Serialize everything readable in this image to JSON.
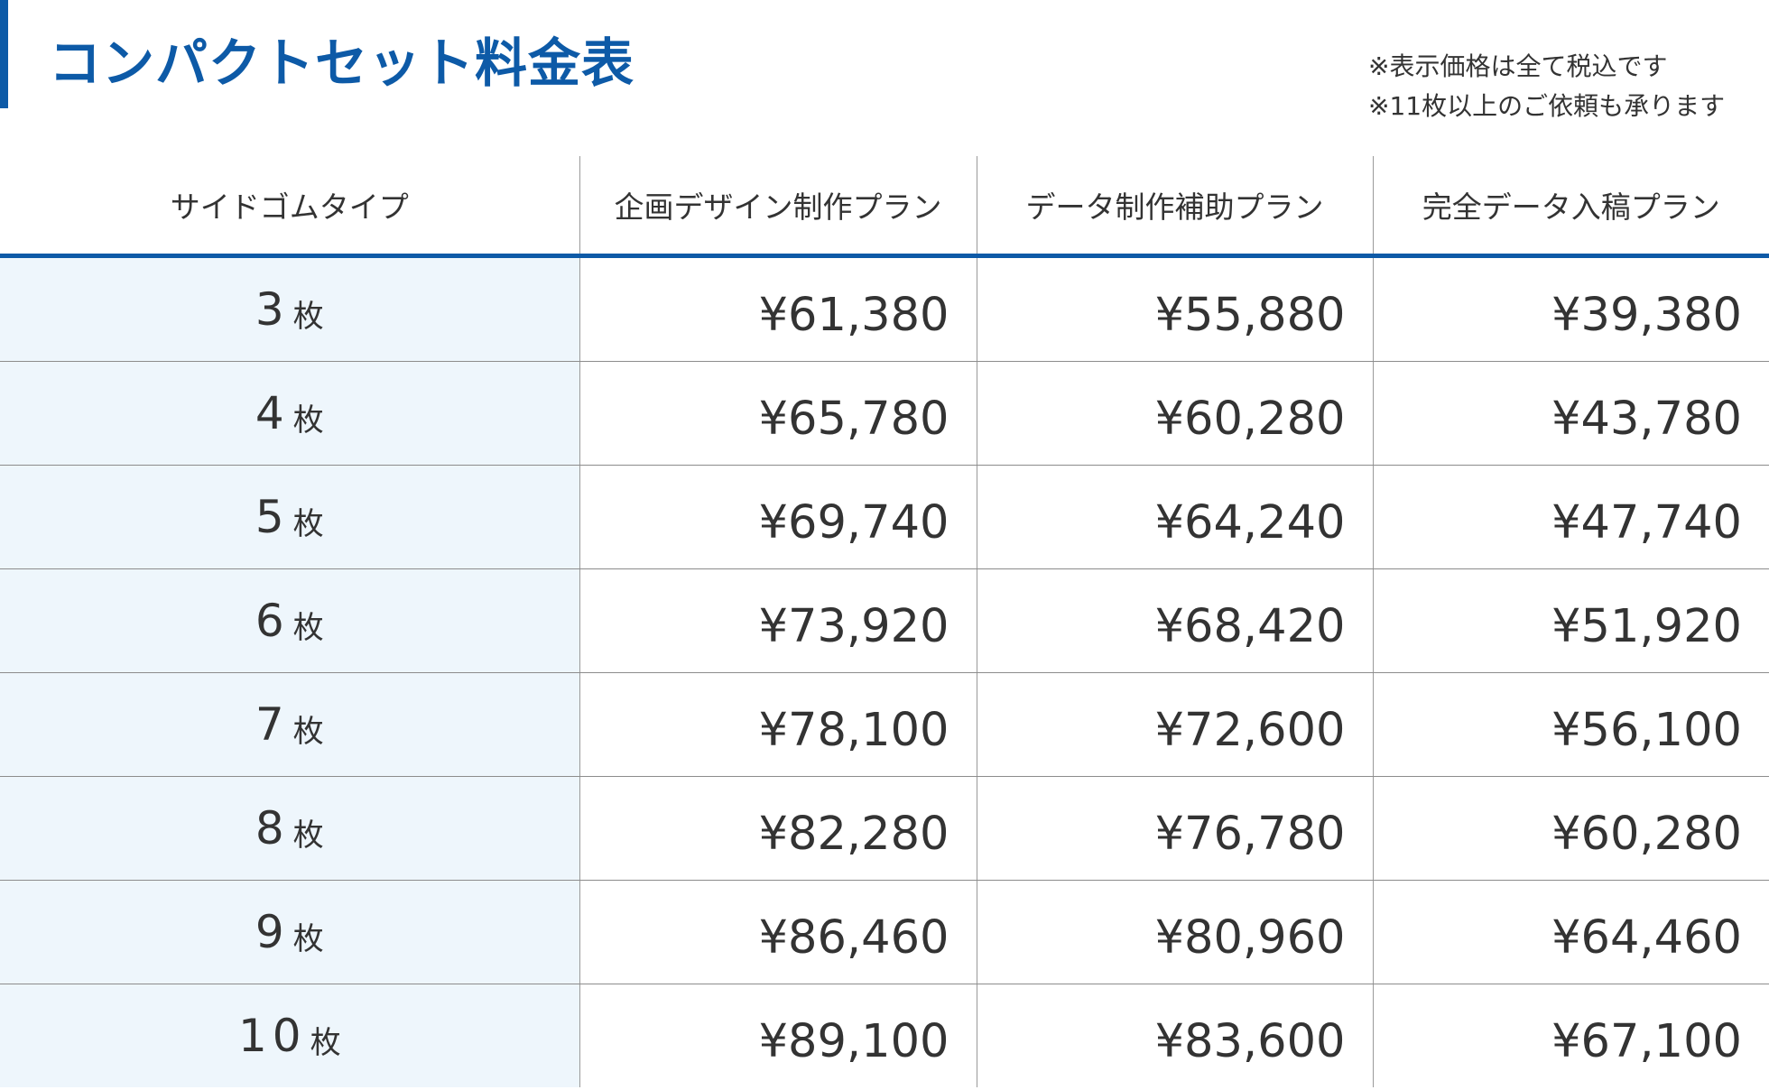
{
  "title": "コンパクトセット料金表",
  "notes": [
    "※表示価格は全て税込です",
    "※11枚以上のご依頼も承ります"
  ],
  "colors": {
    "accent": "#0d5aa7",
    "first_column_background": "#eef6fc"
  },
  "table": {
    "headers": [
      "サイドゴムタイプ",
      "企画デザイン制作プラン",
      "データ制作補助プラン",
      "完全データ入稿プラン"
    ],
    "unit": "枚",
    "rows": [
      {
        "count": "3",
        "prices": [
          "¥61,380",
          "¥55,880",
          "¥39,380"
        ]
      },
      {
        "count": "4",
        "prices": [
          "¥65,780",
          "¥60,280",
          "¥43,780"
        ]
      },
      {
        "count": "5",
        "prices": [
          "¥69,740",
          "¥64,240",
          "¥47,740"
        ]
      },
      {
        "count": "6",
        "prices": [
          "¥73,920",
          "¥68,420",
          "¥51,920"
        ]
      },
      {
        "count": "7",
        "prices": [
          "¥78,100",
          "¥72,600",
          "¥56,100"
        ]
      },
      {
        "count": "8",
        "prices": [
          "¥82,280",
          "¥76,780",
          "¥60,280"
        ]
      },
      {
        "count": "9",
        "prices": [
          "¥86,460",
          "¥80,960",
          "¥64,460"
        ]
      },
      {
        "count": "10",
        "prices": [
          "¥89,100",
          "¥83,600",
          "¥67,100"
        ]
      }
    ]
  }
}
